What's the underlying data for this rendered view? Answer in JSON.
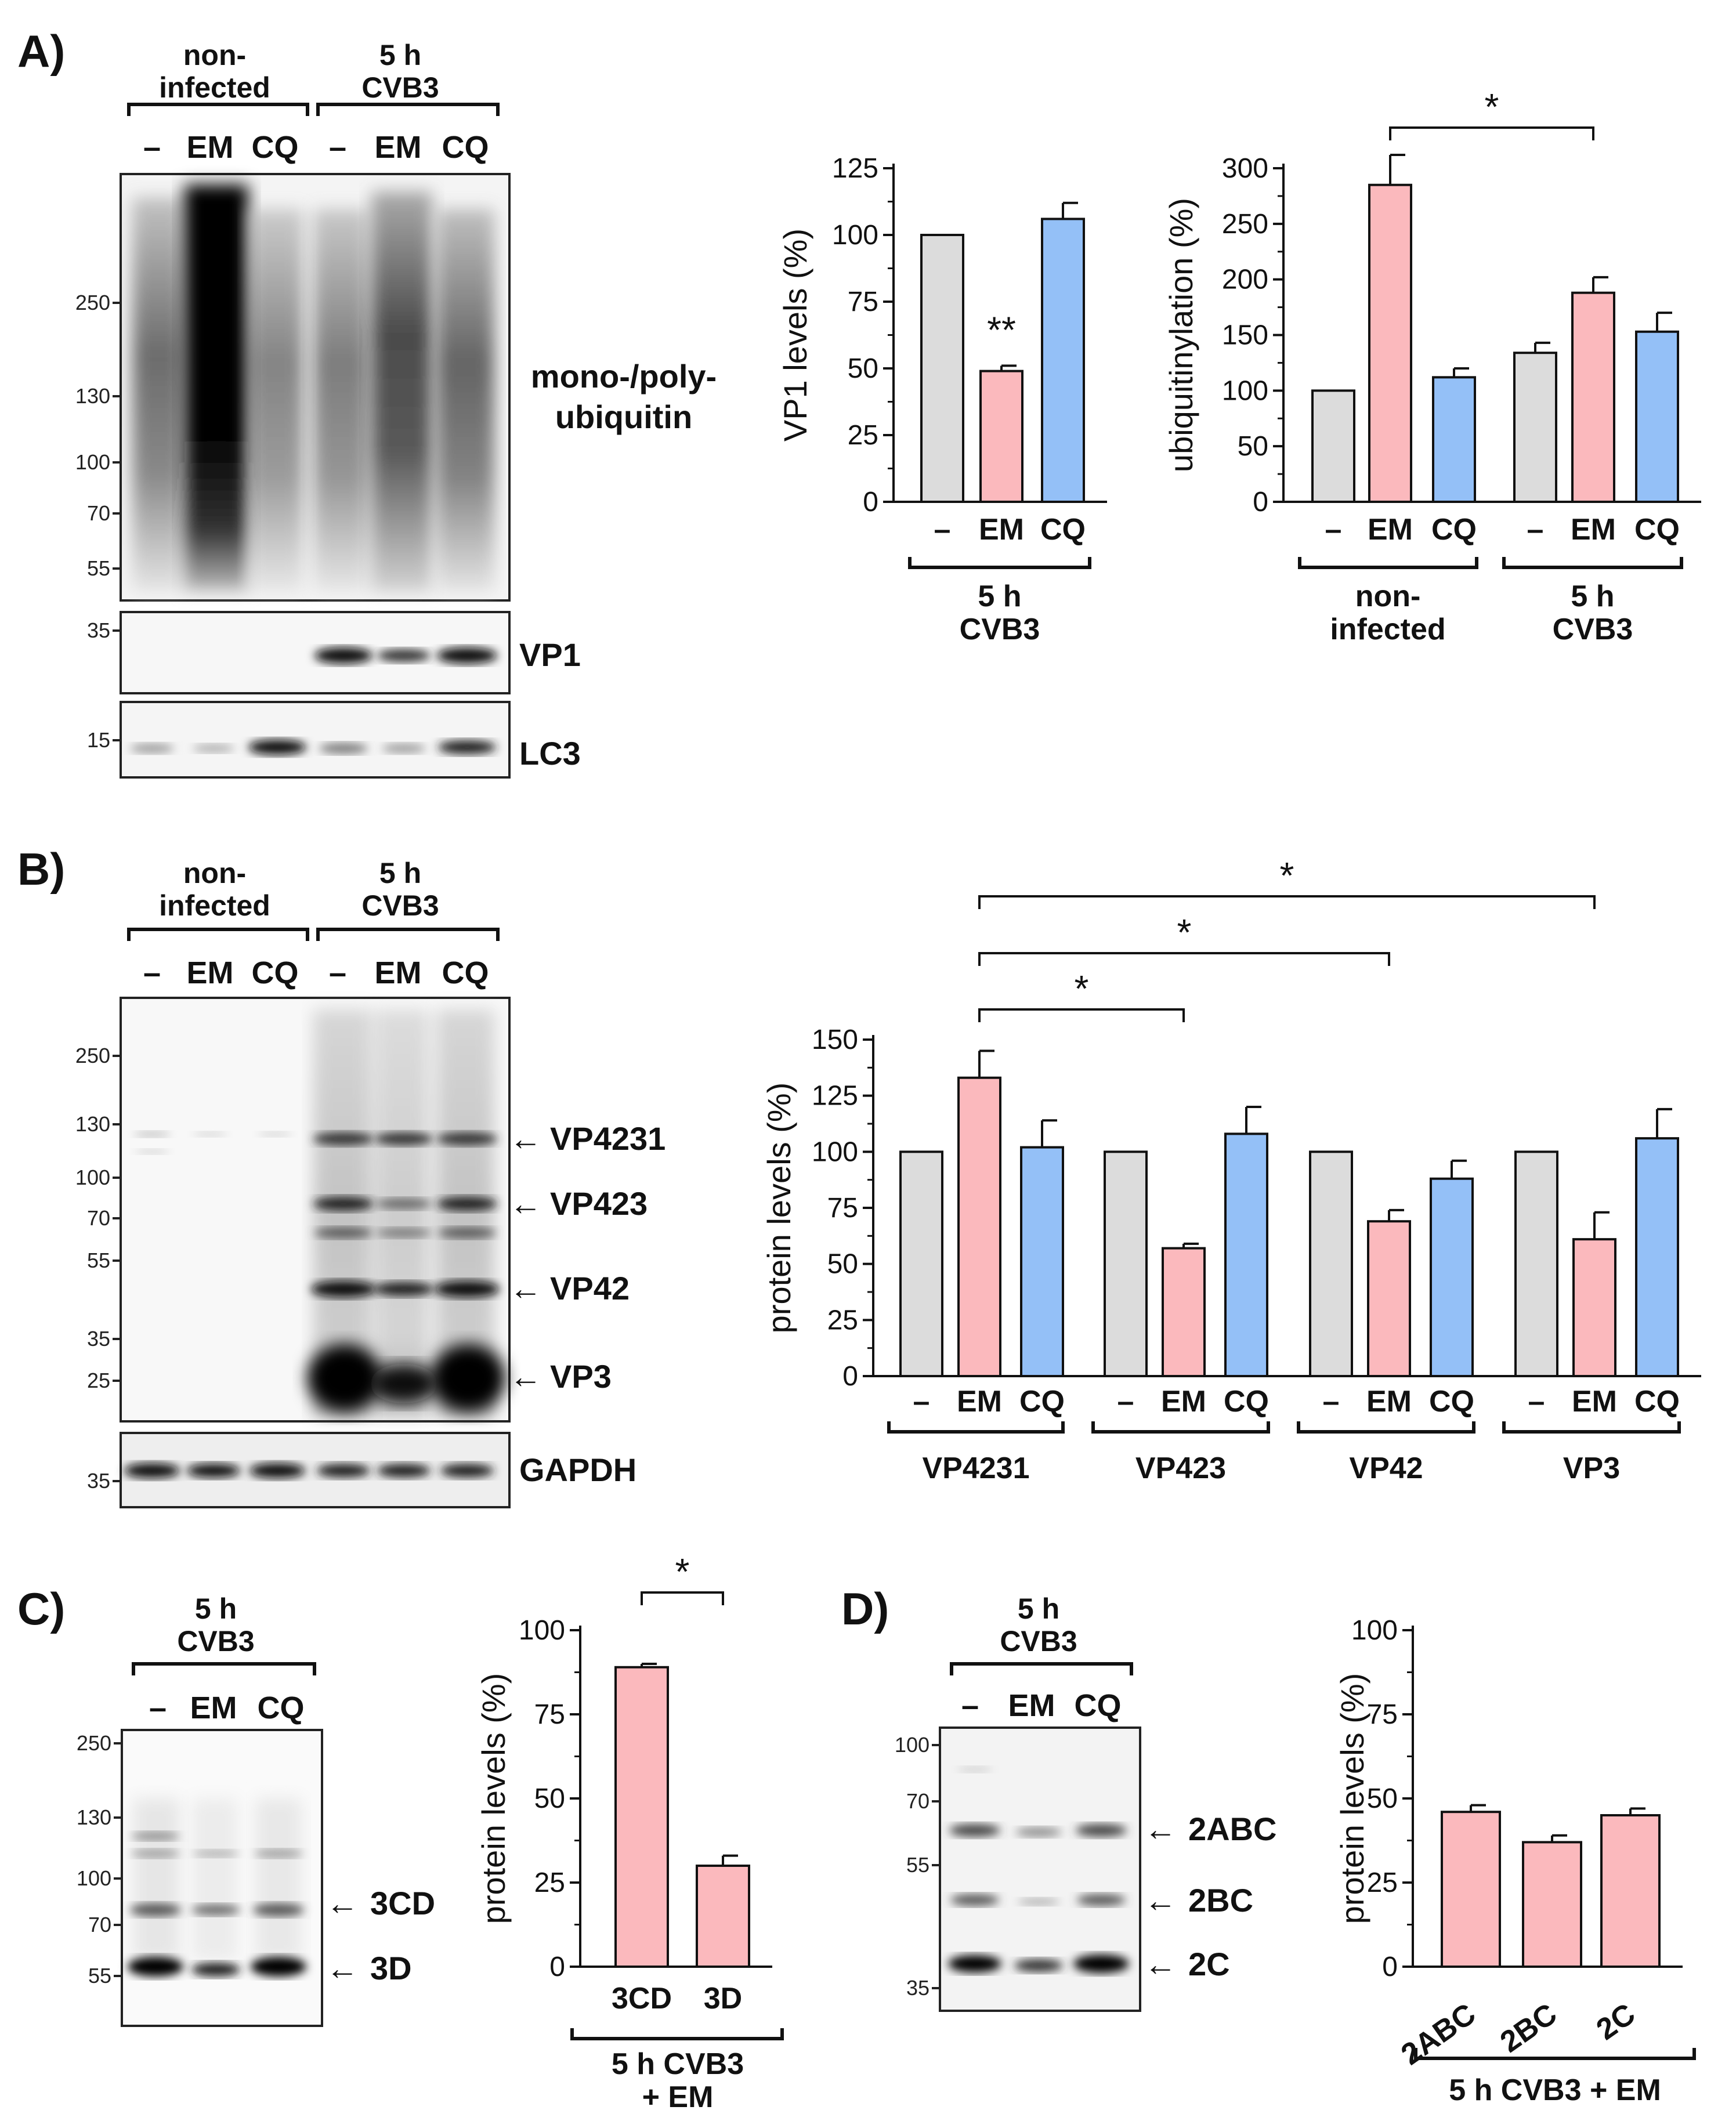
{
  "panels": {
    "A": "A)",
    "B": "B)",
    "C": "C)",
    "D": "D)"
  },
  "conditions": {
    "noninf_1": "non-",
    "noninf_2": "infected",
    "cvb_1": "5 h",
    "cvb_2": "CVB3"
  },
  "lanes": [
    "–",
    "EM",
    "CQ"
  ],
  "markers": {
    "A_main": [
      "250",
      "130",
      "100",
      "70",
      "55"
    ],
    "A_vp1": "35",
    "A_lc3": "15",
    "B_main": [
      "250",
      "130",
      "100",
      "70",
      "55",
      "35",
      "25"
    ],
    "B_gapdh": "35",
    "C_main": [
      "250",
      "130",
      "100",
      "70",
      "55"
    ],
    "D_main": [
      "100",
      "70",
      "55",
      "35"
    ]
  },
  "blot_labels": {
    "ub_1": "mono-/poly-",
    "ub_2": "ubiquitin",
    "vp1": "VP1",
    "lc3": "LC3",
    "vp4231": "VP4231",
    "vp423": "VP423",
    "vp42": "VP42",
    "vp3": "VP3",
    "gapdh": "GAPDH",
    "c3cd": "3CD",
    "c3d": "3D",
    "d2abc": "2ABC",
    "d2bc": "2BC",
    "d2c": "2C",
    "arrow": "←"
  },
  "chart_groups": {
    "a1": [
      "5 h",
      "CVB3"
    ],
    "a2_left": [
      "non-",
      "infected"
    ],
    "a2_right": [
      "5 h",
      "CVB3"
    ],
    "c": [
      "5 h CVB3",
      "+ EM"
    ],
    "d": "5 h CVB3 + EM"
  },
  "colors": {
    "grey": "#dcdcdc",
    "pink": "#fbb9bd",
    "blue": "#94c0f7"
  },
  "chart_data": [
    {
      "id": "A1",
      "type": "bar",
      "ylabel": "VP1 levels (%)",
      "ylim": [
        0,
        125
      ],
      "yticks": [
        "0",
        "25",
        "50",
        "75",
        "100",
        "125"
      ],
      "categories": [
        "–",
        "EM",
        "CQ"
      ],
      "values": [
        100,
        49,
        106
      ],
      "errors": [
        0,
        2,
        6
      ],
      "bar_colors": [
        "grey",
        "pink",
        "blue"
      ],
      "annotations": [
        {
          "category_index": 1,
          "text": "**"
        }
      ],
      "group_label": "5 h CVB3"
    },
    {
      "id": "A2",
      "type": "bar",
      "ylabel": "ubiquitinylation (%)",
      "ylim": [
        0,
        300
      ],
      "yticks": [
        "0",
        "50",
        "100",
        "150",
        "200",
        "250",
        "300"
      ],
      "categories": [
        "–",
        "EM",
        "CQ",
        "–",
        "EM",
        "CQ"
      ],
      "values": [
        100,
        285,
        112,
        134,
        188,
        153
      ],
      "errors": [
        0,
        27,
        8,
        9,
        14,
        17
      ],
      "bar_colors": [
        "grey",
        "pink",
        "blue",
        "grey",
        "pink",
        "blue"
      ],
      "groups": [
        "non-infected",
        "5 h CVB3"
      ],
      "significance": [
        {
          "from": 1,
          "to": 4,
          "text": "*"
        }
      ]
    },
    {
      "id": "B",
      "type": "bar",
      "ylabel": "protein levels (%)",
      "ylim": [
        0,
        150
      ],
      "yticks": [
        "0",
        "25",
        "50",
        "75",
        "100",
        "125",
        "150"
      ],
      "categories": [
        "–",
        "EM",
        "CQ",
        "–",
        "EM",
        "CQ",
        "–",
        "EM",
        "CQ",
        "–",
        "EM",
        "CQ"
      ],
      "values": [
        100,
        133,
        102,
        100,
        57,
        108,
        100,
        69,
        88,
        100,
        61,
        106
      ],
      "errors": [
        0,
        12,
        12,
        0,
        2,
        12,
        0,
        5,
        8,
        0,
        12,
        13
      ],
      "bar_colors": [
        "grey",
        "pink",
        "blue",
        "grey",
        "pink",
        "blue",
        "grey",
        "pink",
        "blue",
        "grey",
        "pink",
        "blue"
      ],
      "groups": [
        "VP4231",
        "VP423",
        "VP42",
        "VP3"
      ],
      "significance": [
        {
          "from": 1,
          "to": 4,
          "text": "*"
        },
        {
          "from": 1,
          "to": 7,
          "text": "*"
        },
        {
          "from": 1,
          "to": 10,
          "text": "*"
        }
      ]
    },
    {
      "id": "C",
      "type": "bar",
      "ylabel": "protein levels (%)",
      "ylim": [
        0,
        100
      ],
      "yticks": [
        "0",
        "25",
        "50",
        "75",
        "100"
      ],
      "categories": [
        "3CD",
        "3D"
      ],
      "values": [
        89,
        30
      ],
      "errors": [
        1,
        3
      ],
      "bar_colors": [
        "pink",
        "pink"
      ],
      "significance": [
        {
          "from": 0,
          "to": 1,
          "text": "*"
        }
      ],
      "group_label": "5 h CVB3 + EM"
    },
    {
      "id": "D",
      "type": "bar",
      "ylabel": "protein levels (%)",
      "ylim": [
        0,
        100
      ],
      "yticks": [
        "0",
        "25",
        "50",
        "75",
        "100"
      ],
      "categories": [
        "2ABC",
        "2BC",
        "2C"
      ],
      "values": [
        46,
        37,
        45
      ],
      "errors": [
        2,
        2,
        2
      ],
      "bar_colors": [
        "pink",
        "pink",
        "pink"
      ],
      "group_label": "5 h CVB3 + EM"
    }
  ]
}
